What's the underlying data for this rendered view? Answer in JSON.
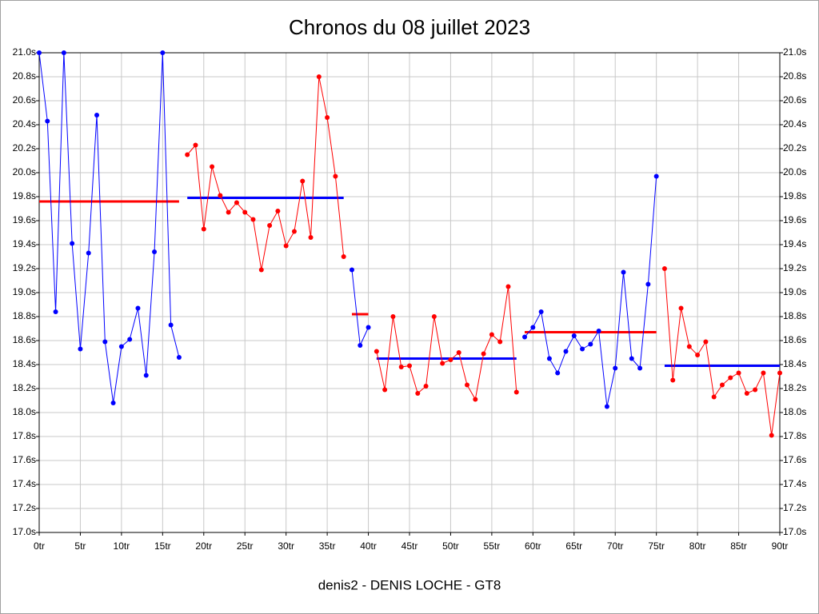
{
  "chart_data": {
    "type": "line",
    "title": "Chronos du 08 juillet 2023",
    "xlabel": "denis2 - DENIS LOCHE - GT8",
    "xlim": [
      0,
      90
    ],
    "ylim": [
      17.0,
      21.0
    ],
    "y2lim": [
      17.0,
      21.0
    ],
    "grid": true,
    "xticks": [
      {
        "value": 0,
        "label": "0tr"
      },
      {
        "value": 5,
        "label": "5tr"
      },
      {
        "value": 10,
        "label": "10tr"
      },
      {
        "value": 15,
        "label": "15tr"
      },
      {
        "value": 20,
        "label": "20tr"
      },
      {
        "value": 25,
        "label": "25tr"
      },
      {
        "value": 30,
        "label": "30tr"
      },
      {
        "value": 35,
        "label": "35tr"
      },
      {
        "value": 40,
        "label": "40tr"
      },
      {
        "value": 45,
        "label": "45tr"
      },
      {
        "value": 50,
        "label": "50tr"
      },
      {
        "value": 55,
        "label": "55tr"
      },
      {
        "value": 60,
        "label": "60tr"
      },
      {
        "value": 65,
        "label": "65tr"
      },
      {
        "value": 70,
        "label": "70tr"
      },
      {
        "value": 75,
        "label": "75tr"
      },
      {
        "value": 80,
        "label": "80tr"
      },
      {
        "value": 85,
        "label": "85tr"
      },
      {
        "value": 90,
        "label": "90tr"
      }
    ],
    "yticks": [
      {
        "value": 17.0,
        "label": "17.0s"
      },
      {
        "value": 17.2,
        "label": "17.2s"
      },
      {
        "value": 17.4,
        "label": "17.4s"
      },
      {
        "value": 17.6,
        "label": "17.6s"
      },
      {
        "value": 17.8,
        "label": "17.8s"
      },
      {
        "value": 18.0,
        "label": "18.0s"
      },
      {
        "value": 18.2,
        "label": "18.2s"
      },
      {
        "value": 18.4,
        "label": "18.4s"
      },
      {
        "value": 18.6,
        "label": "18.6s"
      },
      {
        "value": 18.8,
        "label": "18.8s"
      },
      {
        "value": 19.0,
        "label": "19.0s"
      },
      {
        "value": 19.2,
        "label": "19.2s"
      },
      {
        "value": 19.4,
        "label": "19.4s"
      },
      {
        "value": 19.6,
        "label": "19.6s"
      },
      {
        "value": 19.8,
        "label": "19.8s"
      },
      {
        "value": 20.0,
        "label": "20.0s"
      },
      {
        "value": 20.2,
        "label": "20.2s"
      },
      {
        "value": 20.4,
        "label": "20.4s"
      },
      {
        "value": 20.6,
        "label": "20.6s"
      },
      {
        "value": 20.8,
        "label": "20.8s"
      },
      {
        "value": 21.0,
        "label": "21.0s"
      }
    ],
    "y2ticks": [
      {
        "value": 17.0,
        "label": "17.0s"
      },
      {
        "value": 17.2,
        "label": "17.2s"
      },
      {
        "value": 17.4,
        "label": "17.4s"
      },
      {
        "value": 17.6,
        "label": "17.6s"
      },
      {
        "value": 17.8,
        "label": "17.8s"
      },
      {
        "value": 18.0,
        "label": "18.0s"
      },
      {
        "value": 18.2,
        "label": "18.2s"
      },
      {
        "value": 18.4,
        "label": "18.4s"
      },
      {
        "value": 18.6,
        "label": "18.6s"
      },
      {
        "value": 18.8,
        "label": "18.8s"
      },
      {
        "value": 19.0,
        "label": "19.0s"
      },
      {
        "value": 19.2,
        "label": "19.2s"
      },
      {
        "value": 19.4,
        "label": "19.4s"
      },
      {
        "value": 19.6,
        "label": "19.6s"
      },
      {
        "value": 19.8,
        "label": "19.8s"
      },
      {
        "value": 20.0,
        "label": "20.0s"
      },
      {
        "value": 20.2,
        "label": "20.2s"
      },
      {
        "value": 20.4,
        "label": "20.4s"
      },
      {
        "value": 20.6,
        "label": "20.6s"
      },
      {
        "value": 20.8,
        "label": "20.8s"
      },
      {
        "value": 21.0,
        "label": "21.0s"
      }
    ],
    "series": [
      {
        "color": "#0000ff",
        "x": [
          0,
          1,
          2,
          3,
          4,
          5,
          6,
          7,
          8,
          9,
          10,
          11,
          12,
          13,
          14,
          15,
          16,
          17
        ],
        "values": [
          21.0,
          20.43,
          18.84,
          21.0,
          19.41,
          18.53,
          19.33,
          20.48,
          18.59,
          18.08,
          18.55,
          18.61,
          18.87,
          18.31,
          19.34,
          21.0,
          18.73,
          18.46
        ]
      },
      {
        "color": "#ff0000",
        "x": [
          18,
          19,
          20,
          21,
          22,
          23,
          24,
          25,
          26,
          27,
          28,
          29,
          30,
          31,
          32,
          33,
          34,
          35,
          36,
          37
        ],
        "values": [
          20.15,
          20.23,
          19.53,
          20.05,
          19.81,
          19.67,
          19.75,
          19.67,
          19.61,
          19.19,
          19.56,
          19.68,
          19.39,
          19.51,
          19.93,
          19.46,
          20.8,
          20.46,
          19.97,
          19.3
        ]
      },
      {
        "color": "#0000ff",
        "x": [
          38,
          39,
          40
        ],
        "values": [
          19.19,
          18.56,
          18.71
        ]
      },
      {
        "color": "#ff0000",
        "x": [
          41,
          42,
          43,
          44,
          45,
          46,
          47,
          48,
          49,
          50,
          51,
          52,
          53,
          54,
          55,
          56,
          57,
          58
        ],
        "values": [
          18.51,
          18.19,
          18.8,
          18.38,
          18.39,
          18.16,
          18.22,
          18.8,
          18.41,
          18.44,
          18.5,
          18.23,
          18.11,
          18.49,
          18.65,
          18.59,
          19.05,
          18.17
        ]
      },
      {
        "color": "#0000ff",
        "x": [
          59,
          60,
          61,
          62,
          63,
          64,
          65,
          66,
          67,
          68,
          69,
          70,
          71,
          72,
          73,
          74,
          75
        ],
        "values": [
          18.63,
          18.71,
          18.84,
          18.45,
          18.33,
          18.51,
          18.64,
          18.53,
          18.57,
          18.68,
          18.05,
          18.37,
          19.17,
          18.45,
          18.37,
          19.07,
          19.97
        ]
      },
      {
        "color": "#ff0000",
        "x": [
          76,
          77,
          78,
          79,
          80,
          81,
          82,
          83,
          84,
          85,
          86,
          87,
          88,
          89,
          90
        ],
        "values": [
          19.2,
          18.27,
          18.87,
          18.55,
          18.48,
          18.59,
          18.13,
          18.23,
          18.29,
          18.33,
          18.16,
          18.19,
          18.33,
          17.81,
          18.33
        ]
      }
    ],
    "averages": [
      {
        "color": "#ff0000",
        "xrange": [
          0,
          17
        ],
        "value": 19.76
      },
      {
        "color": "#0000ff",
        "xrange": [
          18,
          37
        ],
        "value": 19.79
      },
      {
        "color": "#ff0000",
        "xrange": [
          38,
          40
        ],
        "value": 18.82
      },
      {
        "color": "#0000ff",
        "xrange": [
          41,
          58
        ],
        "value": 18.45
      },
      {
        "color": "#ff0000",
        "xrange": [
          59,
          75
        ],
        "value": 18.67
      },
      {
        "color": "#0000ff",
        "xrange": [
          76,
          90
        ],
        "value": 18.39
      }
    ]
  }
}
